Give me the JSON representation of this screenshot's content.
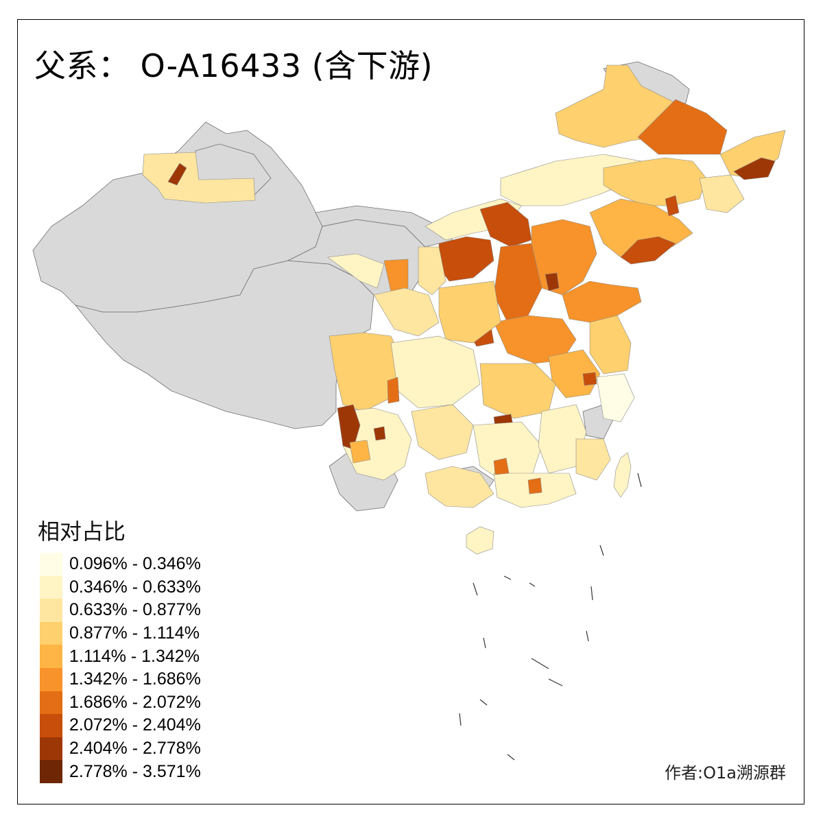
{
  "title": "父系： O-A16433 (含下游)",
  "legend": {
    "title": "相对占比",
    "classes": [
      {
        "label": "0.096% - 0.346%",
        "color": "#FFFDE6"
      },
      {
        "label": "0.346% - 0.633%",
        "color": "#FFF4C4"
      },
      {
        "label": "0.633% - 0.877%",
        "color": "#FEE6A0"
      },
      {
        "label": "0.877% - 1.114%",
        "color": "#FED06E"
      },
      {
        "label": "1.114% - 1.342%",
        "color": "#FEB545"
      },
      {
        "label": "1.342% - 1.686%",
        "color": "#F7932A"
      },
      {
        "label": "1.686% - 2.072%",
        "color": "#E46E15"
      },
      {
        "label": "2.072% - 2.404%",
        "color": "#C74E0B"
      },
      {
        "label": "2.404% - 2.778%",
        "color": "#9E3706"
      },
      {
        "label": "2.778% - 3.571%",
        "color": "#6E2604"
      }
    ]
  },
  "no_data_color": "#D9D9D9",
  "credit": "作者:O1a溯源群"
}
